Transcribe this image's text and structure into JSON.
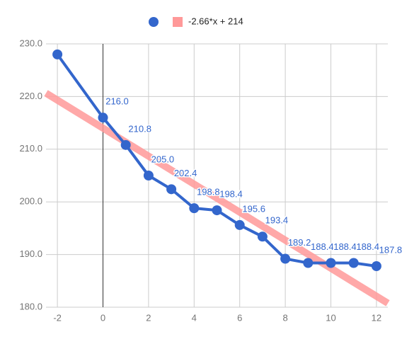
{
  "chart_data": {
    "type": "line",
    "x": [
      -2,
      0,
      1,
      2,
      3,
      4,
      5,
      6,
      7,
      8,
      9,
      10,
      11,
      12
    ],
    "series": [
      {
        "color": "#3366cc",
        "values": [
          228.0,
          216.0,
          210.8,
          205.0,
          202.4,
          198.8,
          198.4,
          195.6,
          193.4,
          189.2,
          188.4,
          188.4,
          188.4,
          187.8
        ],
        "value_labels": [
          null,
          "216.0",
          "210.8",
          "205.0",
          "202.4",
          "198.8",
          "198.4",
          "195.6",
          "193.4",
          "189.2",
          "188.4",
          "188.4",
          "188.4",
          "187.8"
        ]
      },
      {
        "name": "-2.66*x + 214",
        "color": "#ff9999",
        "trendline": true,
        "x": [
          -2.5,
          12.5
        ],
        "values": [
          220.65,
          180.75
        ]
      }
    ],
    "xlim": [
      -2.5,
      12.5
    ],
    "ylim": [
      180,
      230
    ],
    "xticks": [
      -2,
      0,
      2,
      4,
      6,
      8,
      10,
      12
    ],
    "yticks": [
      {
        "value": 180,
        "label": "180.0"
      },
      {
        "value": 190,
        "label": "190.0"
      },
      {
        "value": 200,
        "label": "200.0"
      },
      {
        "value": 210,
        "label": "210.0"
      },
      {
        "value": 220,
        "label": "220.0"
      },
      {
        "value": 230,
        "label": "230.0"
      }
    ],
    "grid": true,
    "legend": "top"
  }
}
